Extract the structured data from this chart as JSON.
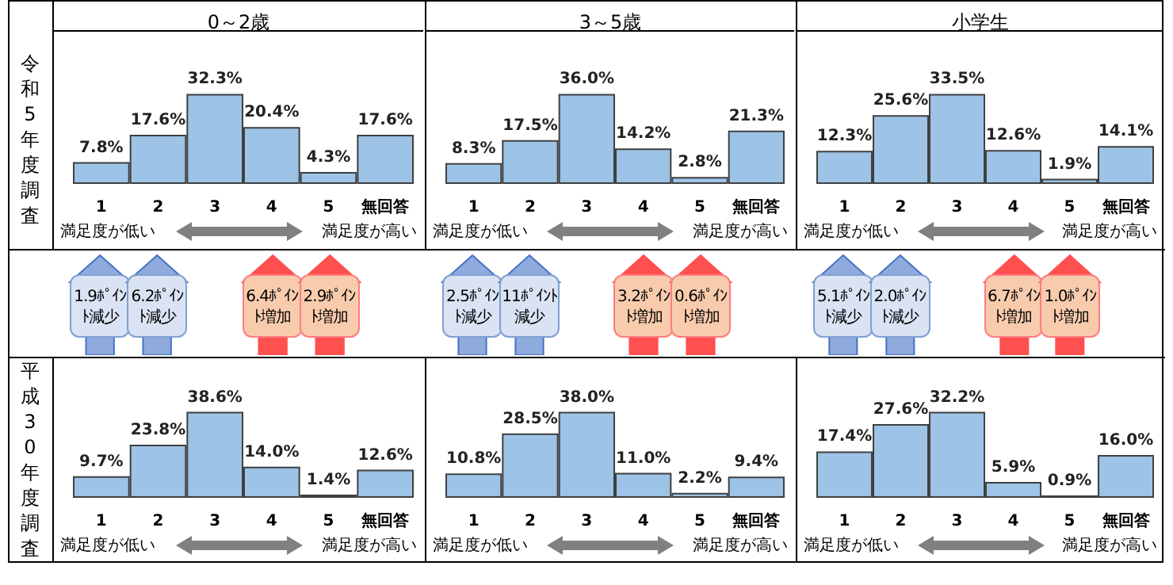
{
  "chart_data": [
    {
      "type": "bar",
      "title": "0～2歳",
      "ylabel": "令和5年度調査",
      "categories": [
        "1",
        "2",
        "3",
        "4",
        "5",
        "無回答"
      ],
      "values": [
        7.8,
        17.6,
        32.3,
        20.4,
        4.3,
        17.6
      ],
      "value_labels": [
        "7.8%",
        "17.6%",
        "32.3%",
        "20.4%",
        "4.3%",
        "17.6%"
      ],
      "color": "#9dc3e6",
      "annotations": [
        "満足度が低い",
        "満足度が高い",
        "1.9ﾎﾟｲﾝﾄ減少",
        "6.2ﾎﾟｲﾝﾄ減少",
        "6.4ﾎﾟｲﾝﾄ増加",
        "2.9ﾎﾟｲﾝﾄ増加"
      ]
    },
    {
      "type": "bar",
      "title": "3～5歳",
      "categories": [
        "1",
        "2",
        "3",
        "4",
        "5",
        "無回答"
      ],
      "values": [
        8.3,
        17.5,
        36.0,
        14.2,
        2.8,
        21.3
      ],
      "value_labels": [
        "8.3%",
        "17.5%",
        "36.0%",
        "14.2%",
        "2.8%",
        "21.3%"
      ],
      "color": "#9dc3e6",
      "annotations": [
        "満足度が低い",
        "満足度が高い",
        "2.5ﾎﾟｲﾝﾄ減少",
        "11ﾎﾟｲﾝﾄ減少",
        "3.2ﾎﾟｲﾝﾄ増加",
        "0.6ﾎﾟｲﾝﾄ増加"
      ]
    },
    {
      "type": "bar",
      "title": "小学生",
      "categories": [
        "1",
        "2",
        "3",
        "4",
        "5",
        "無回答"
      ],
      "values": [
        12.3,
        25.6,
        33.5,
        12.6,
        1.9,
        14.1
      ],
      "value_labels": [
        "12.3%",
        "25.6%",
        "33.5%",
        "12.6%",
        "1.9%",
        "14.1%"
      ],
      "color": "#9dc3e6",
      "annotations": [
        "満足度が低い",
        "満足度が高い",
        "5.1ﾎﾟｲﾝﾄ減少",
        "2.0ﾎﾟｲﾝﾄ減少",
        "6.7ﾎﾟｲﾝﾄ増加",
        "1.0ﾎﾟｲﾝﾄ増加"
      ]
    },
    {
      "type": "bar",
      "ylabel": "平成30年度調査",
      "categories": [
        "1",
        "2",
        "3",
        "4",
        "5",
        "無回答"
      ],
      "values": [
        9.7,
        23.8,
        38.6,
        14.0,
        1.4,
        12.6
      ],
      "value_labels": [
        "9.7%",
        "23.8%",
        "38.6%",
        "14.0%",
        "1.4%",
        "12.6%"
      ],
      "color": "#9dc3e6",
      "annotations": [
        "満足度が低い",
        "満足度が高い"
      ]
    },
    {
      "type": "bar",
      "categories": [
        "1",
        "2",
        "3",
        "4",
        "5",
        "無回答"
      ],
      "values": [
        10.8,
        28.5,
        38.0,
        11.0,
        2.2,
        9.4
      ],
      "value_labels": [
        "10.8%",
        "28.5%",
        "38.0%",
        "11.0%",
        "2.2%",
        "9.4%"
      ],
      "color": "#9dc3e6",
      "annotations": [
        "満足度が低い",
        "満足度が高い"
      ]
    },
    {
      "type": "bar",
      "categories": [
        "1",
        "2",
        "3",
        "4",
        "5",
        "無回答"
      ],
      "values": [
        17.4,
        27.6,
        32.2,
        5.9,
        0.9,
        16.0
      ],
      "value_labels": [
        "17.4%",
        "27.6%",
        "32.2%",
        "5.9%",
        "0.9%",
        "16.0%"
      ],
      "color": "#9dc3e6",
      "annotations": [
        "満足度が低い",
        "満足度が高い"
      ]
    }
  ]
}
